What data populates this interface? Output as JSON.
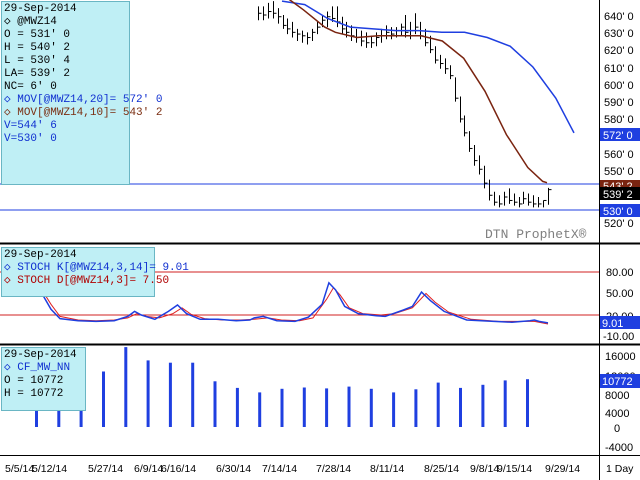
{
  "watermark": "DTN ProphetX®",
  "period_label": "1 Day",
  "colors": {
    "price": "#000000",
    "ma20": "#1f3fe0",
    "ma10": "#7a2410",
    "stoch_k": "#1f3fe0",
    "stoch_d": "#e02020",
    "volume": "#1f3fe0",
    "ref_line": "#1f3fe0",
    "stoch_level": "#d02020"
  },
  "price_panel": {
    "info": {
      "date": "29-Sep-2014",
      "symbol": "@MWZ14",
      "open": "O = 531' 0",
      "high": "H = 540' 2",
      "low": "L = 530' 4",
      "last": "LA= 539' 2",
      "net_change": "NC= 6' 0",
      "ma20": "MOV[@MWZ14,20]= 572' 0",
      "ma10": "MOV[@MWZ14,10]= 543' 2",
      "v1": "V=544' 6",
      "v2": "V=530' 0"
    },
    "axis_ticks": [
      "640' 0",
      "630' 0",
      "620' 0",
      "610' 0",
      "600' 0",
      "590' 0",
      "580' 0",
      "560' 0",
      "550' 0",
      "520' 0"
    ],
    "tags": {
      "ma20": "572' 0",
      "ma10": "543' 2",
      "last": "539' 2",
      "hline_low": "530' 0"
    }
  },
  "stoch_panel": {
    "info": {
      "date": "29-Sep-2014",
      "k": "STOCH K[@MWZ14,3,14]= 9.01",
      "d": "STOCH D[@MWZ14,3]= 7.50"
    },
    "axis_ticks": [
      "80.00",
      "50.00",
      "20.00",
      "-10.00"
    ],
    "tag": "9.01"
  },
  "volume_panel": {
    "info": {
      "date": "29-Sep-2014",
      "symbol": "CF_MW_NN",
      "open": "O = 10772",
      "high": "H = 10772"
    },
    "axis_ticks": [
      "16000",
      "12000",
      "8000",
      "4000",
      "0",
      "-4000"
    ],
    "tag": "10772"
  },
  "x_axis": {
    "labels": [
      "5/5/14",
      "5/12/14",
      "5/27/14",
      "6/9/14",
      "6/16/14",
      "6/30/14",
      "7/14/14",
      "7/28/14",
      "8/11/14",
      "8/25/14",
      "9/8/14",
      "9/15/14",
      "9/29/14"
    ]
  },
  "chart_data": {
    "type": "line",
    "price": {
      "ylim": [
        515,
        645
      ],
      "hlines": [
        544.75,
        530
      ],
      "bars": [
        {
          "date": "7/7/14",
          "high": 645,
          "low": 637,
          "close": 641
        },
        {
          "date": "7/8/14",
          "high": 645,
          "low": 637,
          "close": 640
        },
        {
          "date": "7/9/14",
          "high": 647,
          "low": 638,
          "close": 642
        },
        {
          "date": "7/10/14",
          "high": 648,
          "low": 638,
          "close": 641
        },
        {
          "date": "7/11/14",
          "high": 644,
          "low": 635,
          "close": 639
        },
        {
          "date": "7/14/14",
          "high": 640,
          "low": 632,
          "close": 634
        },
        {
          "date": "7/15/14",
          "high": 638,
          "low": 629,
          "close": 632
        },
        {
          "date": "7/16/14",
          "high": 636,
          "low": 627,
          "close": 630
        },
        {
          "date": "7/17/14",
          "high": 632,
          "low": 625,
          "close": 629
        },
        {
          "date": "7/18/14",
          "high": 631,
          "low": 624,
          "close": 628
        },
        {
          "date": "7/21/14",
          "high": 630,
          "low": 623,
          "close": 627
        },
        {
          "date": "7/22/14",
          "high": 632,
          "low": 625,
          "close": 630
        },
        {
          "date": "7/23/14",
          "high": 636,
          "low": 629,
          "close": 633
        },
        {
          "date": "7/24/14",
          "high": 640,
          "low": 633,
          "close": 637
        },
        {
          "date": "7/25/14",
          "high": 642,
          "low": 633,
          "close": 639
        },
        {
          "date": "7/28/14",
          "high": 645,
          "low": 636,
          "close": 638
        },
        {
          "date": "7/29/14",
          "high": 645,
          "low": 633,
          "close": 636
        },
        {
          "date": "7/30/14",
          "high": 639,
          "low": 629,
          "close": 632
        },
        {
          "date": "7/31/14",
          "high": 636,
          "low": 627,
          "close": 630
        },
        {
          "date": "8/1/14",
          "high": 634,
          "low": 625,
          "close": 628
        },
        {
          "date": "8/4/14",
          "high": 632,
          "low": 624,
          "close": 627
        },
        {
          "date": "8/5/14",
          "high": 631,
          "low": 622,
          "close": 625
        },
        {
          "date": "8/6/14",
          "high": 630,
          "low": 621,
          "close": 624
        },
        {
          "date": "8/7/14",
          "high": 628,
          "low": 621,
          "close": 624
        },
        {
          "date": "8/8/14",
          "high": 630,
          "low": 622,
          "close": 627
        },
        {
          "date": "8/11/14",
          "high": 632,
          "low": 624,
          "close": 628
        },
        {
          "date": "8/12/14",
          "high": 634,
          "low": 626,
          "close": 630
        },
        {
          "date": "8/13/14",
          "high": 633,
          "low": 626,
          "close": 629
        },
        {
          "date": "8/14/14",
          "high": 633,
          "low": 627,
          "close": 631
        },
        {
          "date": "8/15/14",
          "high": 635,
          "low": 628,
          "close": 633
        },
        {
          "date": "8/18/14",
          "high": 640,
          "low": 627,
          "close": 630
        },
        {
          "date": "8/19/14",
          "high": 636,
          "low": 626,
          "close": 631
        },
        {
          "date": "8/20/14",
          "high": 641,
          "low": 629,
          "close": 633
        },
        {
          "date": "8/21/14",
          "high": 636,
          "low": 626,
          "close": 628
        },
        {
          "date": "8/22/14",
          "high": 632,
          "low": 622,
          "close": 624
        },
        {
          "date": "8/25/14",
          "high": 628,
          "low": 618,
          "close": 620
        },
        {
          "date": "8/26/14",
          "high": 622,
          "low": 612,
          "close": 614
        },
        {
          "date": "8/27/14",
          "high": 617,
          "low": 609,
          "close": 612
        },
        {
          "date": "8/28/14",
          "high": 615,
          "low": 606,
          "close": 609
        },
        {
          "date": "8/29/14",
          "high": 611,
          "low": 603,
          "close": 605
        },
        {
          "date": "9/2/14",
          "high": 604,
          "low": 590,
          "close": 592
        },
        {
          "date": "9/3/14",
          "high": 593,
          "low": 578,
          "close": 580
        },
        {
          "date": "9/4/14",
          "high": 582,
          "low": 570,
          "close": 572
        },
        {
          "date": "9/5/14",
          "high": 573,
          "low": 561,
          "close": 563
        },
        {
          "date": "9/8/14",
          "high": 565,
          "low": 553,
          "close": 556
        },
        {
          "date": "9/9/14",
          "high": 559,
          "low": 548,
          "close": 551
        },
        {
          "date": "9/10/14",
          "high": 553,
          "low": 540,
          "close": 543
        },
        {
          "date": "9/11/14",
          "high": 545,
          "low": 533,
          "close": 536
        },
        {
          "date": "9/12/14",
          "high": 538,
          "low": 530,
          "close": 532
        },
        {
          "date": "9/15/14",
          "high": 536,
          "low": 529,
          "close": 531
        },
        {
          "date": "9/16/14",
          "high": 538,
          "low": 530,
          "close": 535
        },
        {
          "date": "9/17/14",
          "high": 540,
          "low": 531,
          "close": 533
        },
        {
          "date": "9/18/14",
          "high": 537,
          "low": 530,
          "close": 532
        },
        {
          "date": "9/19/14",
          "high": 535,
          "low": 529,
          "close": 531
        },
        {
          "date": "9/22/14",
          "high": 538,
          "low": 531,
          "close": 534
        },
        {
          "date": "9/23/14",
          "high": 537,
          "low": 530,
          "close": 532
        },
        {
          "date": "9/24/14",
          "high": 536,
          "low": 529,
          "close": 531
        },
        {
          "date": "9/25/14",
          "high": 535,
          "low": 529,
          "close": 531
        },
        {
          "date": "9/26/14",
          "high": 533,
          "low": 529,
          "close": 533
        },
        {
          "date": "9/29/14",
          "high": 540.25,
          "low": 530.5,
          "close": 539.25
        }
      ],
      "ma20": [
        [
          0,
          648
        ],
        [
          10,
          646
        ],
        [
          20,
          638
        ],
        [
          30,
          633
        ],
        [
          40,
          632
        ],
        [
          50,
          631
        ],
        [
          60,
          631
        ],
        [
          70,
          630
        ],
        [
          80,
          630
        ],
        [
          90,
          627
        ],
        [
          100,
          622
        ],
        [
          110,
          610
        ],
        [
          120,
          592
        ],
        [
          128,
          572
        ]
      ],
      "ma10": [
        [
          0,
          652
        ],
        [
          10,
          643
        ],
        [
          20,
          633
        ],
        [
          25,
          630
        ],
        [
          35,
          627
        ],
        [
          45,
          628
        ],
        [
          55,
          628
        ],
        [
          65,
          628
        ],
        [
          75,
          625
        ],
        [
          85,
          615
        ],
        [
          95,
          596
        ],
        [
          105,
          571
        ],
        [
          115,
          552
        ],
        [
          122,
          544
        ],
        [
          124,
          543.25
        ]
      ]
    },
    "stochastic": {
      "ylim": [
        -15,
        95
      ],
      "levels": [
        80,
        20
      ],
      "k": [
        [
          -8,
          50
        ],
        [
          -4,
          28
        ],
        [
          0,
          15
        ],
        [
          8,
          12
        ],
        [
          16,
          11
        ],
        [
          24,
          12
        ],
        [
          30,
          18
        ],
        [
          33,
          25
        ],
        [
          36,
          20
        ],
        [
          42,
          14
        ],
        [
          48,
          25
        ],
        [
          52,
          34
        ],
        [
          56,
          22
        ],
        [
          62,
          14
        ],
        [
          70,
          14
        ],
        [
          78,
          12
        ],
        [
          84,
          13
        ],
        [
          86,
          16
        ],
        [
          90,
          18
        ],
        [
          96,
          12
        ],
        [
          104,
          11
        ],
        [
          110,
          17
        ],
        [
          116,
          35
        ],
        [
          119,
          65
        ],
        [
          122,
          55
        ],
        [
          126,
          32
        ],
        [
          132,
          22
        ],
        [
          140,
          19
        ],
        [
          144,
          18
        ],
        [
          152,
          27
        ],
        [
          156,
          32
        ],
        [
          160,
          52
        ],
        [
          164,
          40
        ],
        [
          170,
          25
        ],
        [
          180,
          13
        ],
        [
          192,
          11
        ],
        [
          200,
          10
        ],
        [
          208,
          12
        ],
        [
          210,
          13
        ],
        [
          212,
          11
        ],
        [
          216,
          9.01
        ]
      ],
      "d": [
        [
          -8,
          55
        ],
        [
          -4,
          35
        ],
        [
          0,
          18
        ],
        [
          8,
          13
        ],
        [
          16,
          12
        ],
        [
          24,
          13
        ],
        [
          30,
          16
        ],
        [
          34,
          22
        ],
        [
          38,
          18
        ],
        [
          44,
          16
        ],
        [
          50,
          22
        ],
        [
          54,
          30
        ],
        [
          58,
          21
        ],
        [
          64,
          15
        ],
        [
          72,
          13
        ],
        [
          80,
          13
        ],
        [
          86,
          14
        ],
        [
          92,
          16
        ],
        [
          98,
          13
        ],
        [
          106,
          12
        ],
        [
          112,
          16
        ],
        [
          118,
          42
        ],
        [
          121,
          58
        ],
        [
          124,
          48
        ],
        [
          128,
          30
        ],
        [
          134,
          22
        ],
        [
          142,
          20
        ],
        [
          148,
          22
        ],
        [
          156,
          30
        ],
        [
          162,
          50
        ],
        [
          166,
          38
        ],
        [
          172,
          24
        ],
        [
          182,
          14
        ],
        [
          194,
          11
        ],
        [
          204,
          11
        ],
        [
          210,
          11
        ],
        [
          216,
          7.5
        ]
      ]
    },
    "volume": {
      "ylim": [
        -5500,
        18500
      ],
      "bars": [
        [
          -10,
          15000
        ],
        [
          0,
          14000
        ],
        [
          10,
          14500
        ],
        [
          20,
          12500
        ],
        [
          30,
          18000
        ],
        [
          40,
          15000
        ],
        [
          50,
          14500
        ],
        [
          60,
          14500
        ],
        [
          70,
          10300
        ],
        [
          80,
          8800
        ],
        [
          90,
          7800
        ],
        [
          100,
          8600
        ],
        [
          110,
          8900
        ],
        [
          120,
          8700
        ],
        [
          130,
          9100
        ],
        [
          140,
          8600
        ],
        [
          150,
          7800
        ],
        [
          160,
          8500
        ],
        [
          170,
          10000
        ],
        [
          180,
          8800
        ],
        [
          190,
          9500
        ],
        [
          200,
          10500
        ],
        [
          210,
          10772
        ]
      ]
    }
  }
}
